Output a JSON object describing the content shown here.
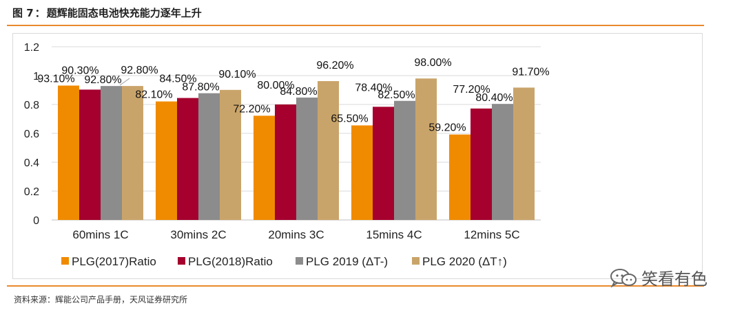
{
  "header": {
    "figure_no": "图 7",
    "separator": "：",
    "title": "题辉能固态电池快充能力逐年上升"
  },
  "source": {
    "text": "资料来源：辉能公司产品手册，天风证券研究所"
  },
  "watermark": {
    "text": "笑看有色"
  },
  "colors": {
    "accent_rule": "#e9882c"
  },
  "chart_data": {
    "type": "bar",
    "categories": [
      "60mins 1C",
      "30mins 2C",
      "20mins 3C",
      "15mins 4C",
      "12mins 5C"
    ],
    "series": [
      {
        "name": "PLG(2017)Ratio",
        "color": "#f08b00",
        "values": [
          0.931,
          0.821,
          0.722,
          0.655,
          0.592
        ],
        "labels": [
          "93.10%",
          "82.10%",
          "72.20%",
          "65.50%",
          "59.20%"
        ]
      },
      {
        "name": "PLG(2018)Ratio",
        "color": "#a5002e",
        "values": [
          0.903,
          0.845,
          0.8,
          0.784,
          0.772
        ],
        "labels": [
          "90.30%",
          "84.50%",
          "80.00%",
          "78.40%",
          "77.20%"
        ]
      },
      {
        "name": "PLG 2019 (ΔT-)",
        "color": "#8c8c8c",
        "values": [
          0.928,
          0.878,
          0.848,
          0.825,
          0.804
        ],
        "labels": [
          "92.80%",
          "87.80%",
          "84.80%",
          "82.50%",
          "80.40%"
        ]
      },
      {
        "name": "PLG 2020 (ΔT↑)",
        "color": "#c9a46a",
        "values": [
          0.928,
          0.901,
          0.962,
          0.98,
          0.917
        ],
        "labels": [
          "92.80%",
          "90.10%",
          "96.20%",
          "98.00%",
          "91.70%"
        ]
      }
    ],
    "yticks": [
      "0",
      "0.2",
      "0.4",
      "0.6",
      "0.8",
      "1",
      "1.2"
    ],
    "ylim": [
      0,
      1.2
    ],
    "grid": true,
    "legend_position": "bottom",
    "title": "",
    "xlabel": "",
    "ylabel": ""
  }
}
